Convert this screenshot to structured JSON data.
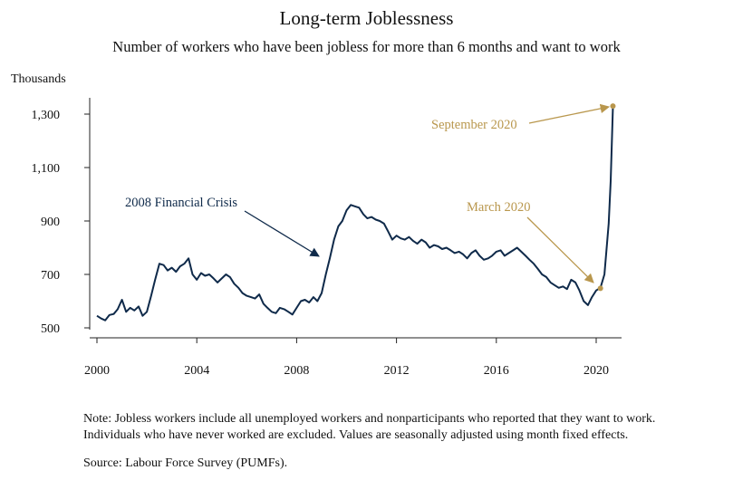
{
  "header": {
    "title": "Long-term Joblessness",
    "subtitle": "Number of workers who have been jobless for more than 6 months and want to work"
  },
  "footer": {
    "note_line1": "Note: Jobless workers include all unemployed workers and nonparticipants who reported that they want to work.",
    "note_line2": "Individuals who have never worked are excluded. Values are seasonally adjusted using month fixed effects.",
    "source": "Source: Labour Force Survey (PUMFs)."
  },
  "colors": {
    "series": "#0f2a4a",
    "accent": "#b9974d",
    "axis": "#222222"
  },
  "chart_data": {
    "type": "line",
    "title": "Long-term Joblessness",
    "subtitle": "Number of workers who have been jobless for more than 6 months and want to work",
    "ylabel": "Thousands",
    "xlabel": "",
    "xlim": [
      2000,
      2021
    ],
    "ylim": [
      490,
      1360
    ],
    "x_ticks": [
      2000,
      2004,
      2008,
      2012,
      2016,
      2020
    ],
    "y_ticks": [
      500,
      700,
      900,
      1100,
      1300
    ],
    "y_tick_labels": [
      "500",
      "700",
      "900",
      "1,100",
      "1,300"
    ],
    "grid": false,
    "series": [
      {
        "points": [
          [
            2000.0,
            545
          ],
          [
            2000.17,
            535
          ],
          [
            2000.33,
            528
          ],
          [
            2000.5,
            548
          ],
          [
            2000.67,
            552
          ],
          [
            2000.83,
            570
          ],
          [
            2001.0,
            605
          ],
          [
            2001.17,
            560
          ],
          [
            2001.33,
            575
          ],
          [
            2001.5,
            565
          ],
          [
            2001.67,
            580
          ],
          [
            2001.83,
            545
          ],
          [
            2002.0,
            560
          ],
          [
            2002.17,
            620
          ],
          [
            2002.33,
            680
          ],
          [
            2002.5,
            740
          ],
          [
            2002.67,
            735
          ],
          [
            2002.83,
            715
          ],
          [
            2003.0,
            725
          ],
          [
            2003.17,
            710
          ],
          [
            2003.33,
            730
          ],
          [
            2003.5,
            740
          ],
          [
            2003.67,
            760
          ],
          [
            2003.83,
            700
          ],
          [
            2004.0,
            680
          ],
          [
            2004.17,
            705
          ],
          [
            2004.33,
            695
          ],
          [
            2004.5,
            700
          ],
          [
            2004.67,
            685
          ],
          [
            2004.83,
            670
          ],
          [
            2005.0,
            685
          ],
          [
            2005.17,
            700
          ],
          [
            2005.33,
            690
          ],
          [
            2005.5,
            665
          ],
          [
            2005.67,
            650
          ],
          [
            2005.83,
            630
          ],
          [
            2006.0,
            620
          ],
          [
            2006.17,
            615
          ],
          [
            2006.33,
            610
          ],
          [
            2006.5,
            625
          ],
          [
            2006.67,
            590
          ],
          [
            2006.83,
            575
          ],
          [
            2007.0,
            560
          ],
          [
            2007.17,
            555
          ],
          [
            2007.33,
            575
          ],
          [
            2007.5,
            570
          ],
          [
            2007.67,
            560
          ],
          [
            2007.83,
            550
          ],
          [
            2008.0,
            575
          ],
          [
            2008.17,
            600
          ],
          [
            2008.33,
            605
          ],
          [
            2008.5,
            595
          ],
          [
            2008.67,
            615
          ],
          [
            2008.83,
            600
          ],
          [
            2009.0,
            630
          ],
          [
            2009.17,
            700
          ],
          [
            2009.33,
            760
          ],
          [
            2009.5,
            830
          ],
          [
            2009.67,
            880
          ],
          [
            2009.83,
            900
          ],
          [
            2010.0,
            940
          ],
          [
            2010.17,
            960
          ],
          [
            2010.33,
            955
          ],
          [
            2010.5,
            950
          ],
          [
            2010.67,
            925
          ],
          [
            2010.83,
            910
          ],
          [
            2011.0,
            915
          ],
          [
            2011.17,
            905
          ],
          [
            2011.33,
            900
          ],
          [
            2011.5,
            890
          ],
          [
            2011.67,
            860
          ],
          [
            2011.83,
            830
          ],
          [
            2012.0,
            845
          ],
          [
            2012.17,
            835
          ],
          [
            2012.33,
            830
          ],
          [
            2012.5,
            840
          ],
          [
            2012.67,
            825
          ],
          [
            2012.83,
            815
          ],
          [
            2013.0,
            830
          ],
          [
            2013.17,
            820
          ],
          [
            2013.33,
            800
          ],
          [
            2013.5,
            810
          ],
          [
            2013.67,
            805
          ],
          [
            2013.83,
            795
          ],
          [
            2014.0,
            800
          ],
          [
            2014.17,
            790
          ],
          [
            2014.33,
            780
          ],
          [
            2014.5,
            785
          ],
          [
            2014.67,
            775
          ],
          [
            2014.83,
            760
          ],
          [
            2015.0,
            780
          ],
          [
            2015.17,
            790
          ],
          [
            2015.33,
            770
          ],
          [
            2015.5,
            755
          ],
          [
            2015.67,
            760
          ],
          [
            2015.83,
            770
          ],
          [
            2016.0,
            785
          ],
          [
            2016.17,
            790
          ],
          [
            2016.33,
            770
          ],
          [
            2016.5,
            780
          ],
          [
            2016.67,
            790
          ],
          [
            2016.83,
            800
          ],
          [
            2017.0,
            785
          ],
          [
            2017.17,
            770
          ],
          [
            2017.33,
            755
          ],
          [
            2017.5,
            740
          ],
          [
            2017.67,
            720
          ],
          [
            2017.83,
            700
          ],
          [
            2018.0,
            690
          ],
          [
            2018.17,
            670
          ],
          [
            2018.33,
            660
          ],
          [
            2018.5,
            650
          ],
          [
            2018.67,
            655
          ],
          [
            2018.83,
            645
          ],
          [
            2019.0,
            680
          ],
          [
            2019.17,
            670
          ],
          [
            2019.33,
            640
          ],
          [
            2019.5,
            600
          ],
          [
            2019.67,
            585
          ],
          [
            2019.83,
            615
          ],
          [
            2020.0,
            640
          ],
          [
            2020.17,
            650
          ],
          [
            2020.33,
            700
          ],
          [
            2020.5,
            890
          ],
          [
            2020.58,
            1050
          ],
          [
            2020.67,
            1330
          ]
        ]
      }
    ],
    "annotations": [
      {
        "text": "2008 Financial Crisis",
        "color": "#0f2a4a",
        "points_to": [
          2008.7,
          700
        ]
      },
      {
        "text": "March 2020",
        "color": "#b9974d",
        "points_to": [
          2020.17,
          648
        ]
      },
      {
        "text": "September 2020",
        "color": "#b9974d",
        "points_to": [
          2020.67,
          1330
        ]
      }
    ]
  }
}
